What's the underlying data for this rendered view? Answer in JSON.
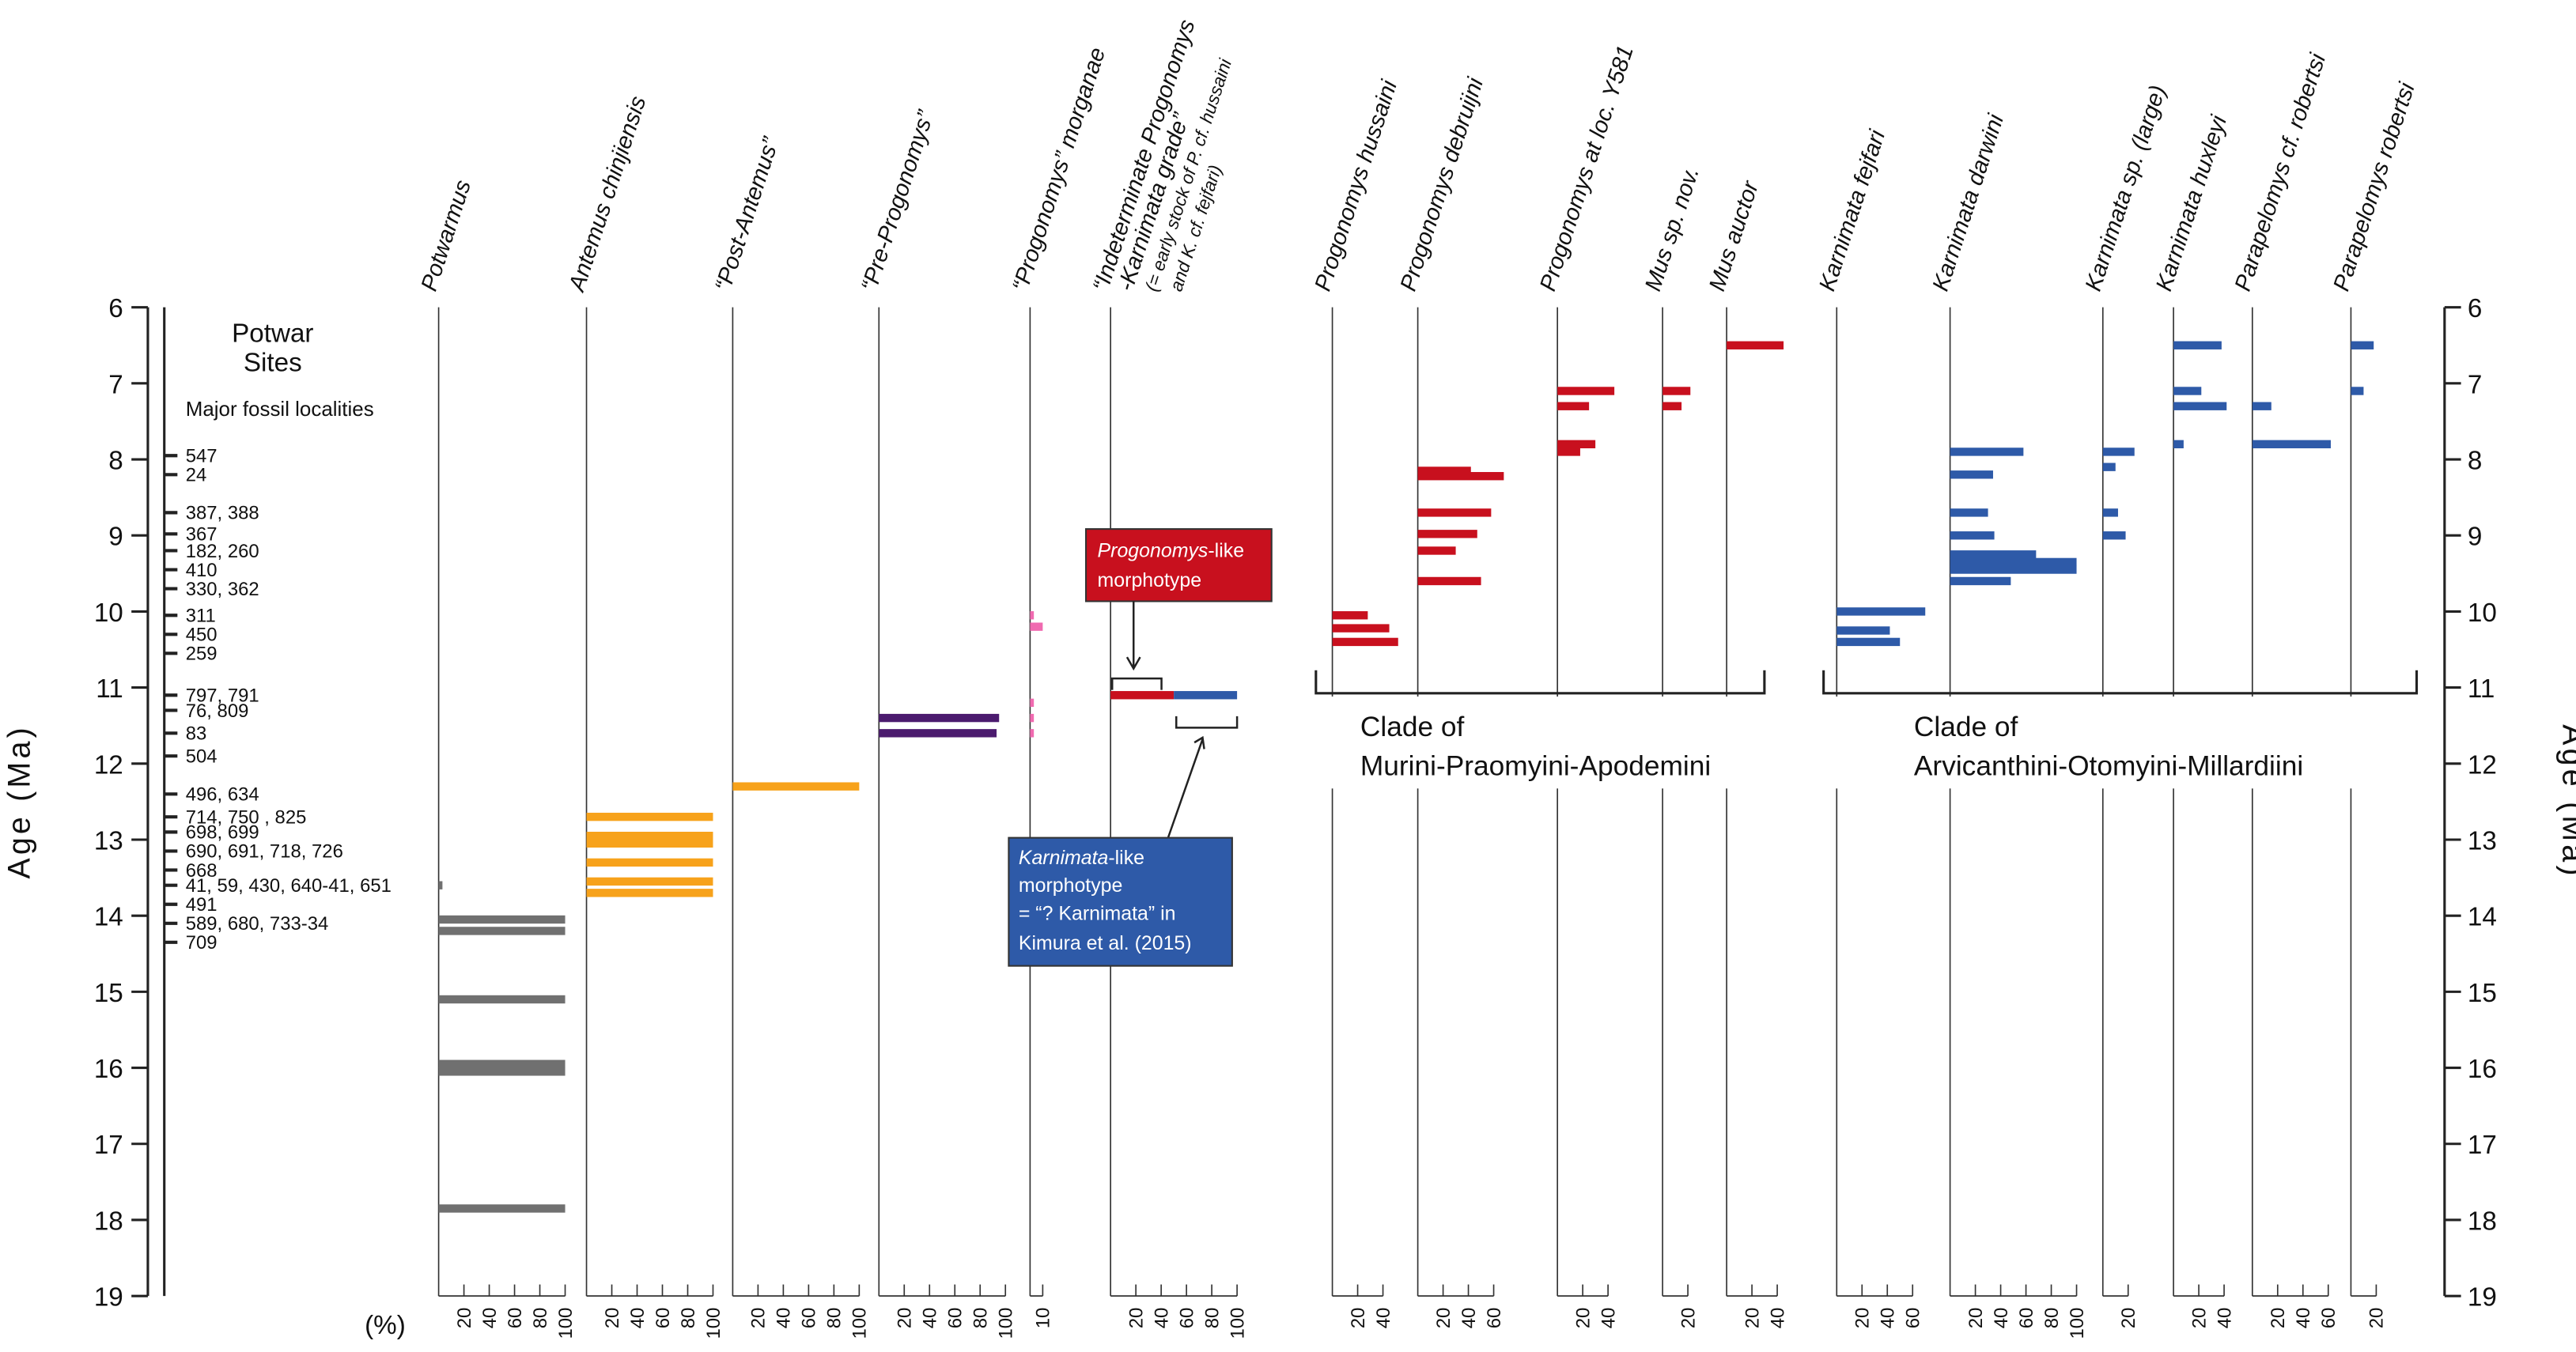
{
  "chart_data": {
    "type": "range-abundance",
    "y_title": "Age (Ma)",
    "x_unit": "(%)",
    "ylim": [
      6,
      19
    ],
    "yticks": [
      6,
      7,
      8,
      9,
      10,
      11,
      12,
      13,
      14,
      15,
      16,
      17,
      18,
      19
    ],
    "sites_title": [
      "Potwar",
      "Sites"
    ],
    "sites_subtitle": "Major fossil localities",
    "sites": [
      {
        "label": "547",
        "age": 7.95
      },
      {
        "label": "24",
        "age": 8.2
      },
      {
        "label": "387, 388",
        "age": 8.7
      },
      {
        "label": "367",
        "age": 8.98
      },
      {
        "label": "182, 260",
        "age": 9.2
      },
      {
        "label": "410",
        "age": 9.45
      },
      {
        "label": "330, 362",
        "age": 9.7
      },
      {
        "label": "311",
        "age": 10.05
      },
      {
        "label": "450",
        "age": 10.3
      },
      {
        "label": "259",
        "age": 10.55
      },
      {
        "label": "797, 791",
        "age": 11.1
      },
      {
        "label": "76, 809",
        "age": 11.3
      },
      {
        "label": "83",
        "age": 11.6
      },
      {
        "label": "504",
        "age": 11.9
      },
      {
        "label": "496, 634",
        "age": 12.4
      },
      {
        "label": "714, 750 , 825",
        "age": 12.7
      },
      {
        "label": "698, 699",
        "age": 12.9
      },
      {
        "label": "690, 691, 718, 726",
        "age": 13.15
      },
      {
        "label": "668",
        "age": 13.4
      },
      {
        "label": "41, 59, 430, 640-41, 651",
        "age": 13.6
      },
      {
        "label": "491",
        "age": 13.85
      },
      {
        "label": "589, 680, 733-34",
        "age": 14.1
      },
      {
        "label": "709",
        "age": 14.35
      }
    ],
    "columns": [
      {
        "name": [
          "Potwarmus"
        ],
        "color": "#707070",
        "xticks": [
          20,
          40,
          60,
          80,
          100
        ],
        "bars": [
          {
            "age": 13.6,
            "value": 3
          },
          {
            "age": 14.05,
            "value": 100
          },
          {
            "age": 14.2,
            "value": 100
          },
          {
            "age": 15.1,
            "value": 100
          },
          {
            "age": 15.95,
            "value": 100
          },
          {
            "age": 16.05,
            "value": 100
          },
          {
            "age": 17.85,
            "value": 100
          }
        ]
      },
      {
        "name": [
          "Antemus chinjiensis"
        ],
        "color": "#f7a21b",
        "xticks": [
          20,
          40,
          60,
          80,
          100
        ],
        "bars": [
          {
            "age": 12.7,
            "value": 100
          },
          {
            "age": 12.95,
            "value": 100
          },
          {
            "age": 13.05,
            "value": 100
          },
          {
            "age": 13.3,
            "value": 100
          },
          {
            "age": 13.55,
            "value": 100
          },
          {
            "age": 13.7,
            "value": 100
          }
        ]
      },
      {
        "name": [
          "“Post-Antemus”"
        ],
        "color": "#f7a21b",
        "xticks": [
          20,
          40,
          60,
          80,
          100
        ],
        "bars": [
          {
            "age": 12.3,
            "value": 100
          }
        ]
      },
      {
        "name": [
          "“Pre-Progonomys”"
        ],
        "color": "#4b1b6e",
        "xticks": [
          20,
          40,
          60,
          80,
          100
        ],
        "bars": [
          {
            "age": 11.4,
            "value": 95
          },
          {
            "age": 11.6,
            "value": 93
          }
        ]
      },
      {
        "name": [
          "“Progonomys” morganae"
        ],
        "color": "#f06ab0",
        "xticks": [
          10
        ],
        "bars": [
          {
            "age": 10.05,
            "value": 3
          },
          {
            "age": 10.2,
            "value": 10
          },
          {
            "age": 11.2,
            "value": 3
          },
          {
            "age": 11.4,
            "value": 3
          },
          {
            "age": 11.6,
            "value": 3
          }
        ]
      },
      {
        "name": [
          "“Indeterminate Progonomys",
          "-Karnimata grade”",
          "(= early stock of P. cf. hussaini",
          "and K. cf. fejfari)"
        ],
        "color": "#c8101e",
        "xticks": [
          20,
          40,
          60,
          80,
          100
        ],
        "bars": [
          {
            "age": 11.1,
            "value": 50
          },
          {
            "age": 11.1,
            "value": 50,
            "color": "#2e5aa8"
          }
        ]
      },
      {
        "name": [
          "Progonomys hussaini"
        ],
        "color": "#c8101e",
        "xticks": [
          20,
          40
        ],
        "bars": [
          {
            "age": 10.05,
            "value": 28
          },
          {
            "age": 10.22,
            "value": 45
          },
          {
            "age": 10.4,
            "value": 52
          }
        ]
      },
      {
        "name": [
          "Progonomys debruijni"
        ],
        "color": "#c8101e",
        "xticks": [
          20,
          40,
          60
        ],
        "bars": [
          {
            "age": 8.15,
            "value": 42
          },
          {
            "age": 8.22,
            "value": 68
          },
          {
            "age": 8.7,
            "value": 58
          },
          {
            "age": 8.98,
            "value": 47
          },
          {
            "age": 9.2,
            "value": 30
          },
          {
            "age": 9.6,
            "value": 50
          }
        ]
      },
      {
        "name": [
          "Progonomys at loc. Y581"
        ],
        "color": "#c8101e",
        "xticks": [
          20,
          40
        ],
        "bars": [
          {
            "age": 7.1,
            "value": 45
          },
          {
            "age": 7.3,
            "value": 25
          },
          {
            "age": 7.8,
            "value": 30
          },
          {
            "age": 7.9,
            "value": 18
          }
        ]
      },
      {
        "name": [
          "Mus sp. nov."
        ],
        "color": "#c8101e",
        "xticks": [
          20
        ],
        "bars": [
          {
            "age": 7.1,
            "value": 22
          },
          {
            "age": 7.3,
            "value": 15
          }
        ]
      },
      {
        "name": [
          "Mus auctor"
        ],
        "color": "#c8101e",
        "xticks": [
          20,
          40
        ],
        "bars": [
          {
            "age": 6.5,
            "value": 45
          }
        ]
      },
      {
        "name": [
          "Karnimata fejfari"
        ],
        "color": "#2e5aa8",
        "xticks": [
          20,
          40,
          60
        ],
        "bars": [
          {
            "age": 10.0,
            "value": 70
          },
          {
            "age": 10.25,
            "value": 42
          },
          {
            "age": 10.4,
            "value": 50
          }
        ]
      },
      {
        "name": [
          "Karnimata darwini"
        ],
        "color": "#2e5aa8",
        "xticks": [
          20,
          40,
          60,
          80,
          100
        ],
        "bars": [
          {
            "age": 7.9,
            "value": 58
          },
          {
            "age": 8.2,
            "value": 34
          },
          {
            "age": 8.7,
            "value": 30
          },
          {
            "age": 9.0,
            "value": 35
          },
          {
            "age": 9.25,
            "value": 68
          },
          {
            "age": 9.35,
            "value": 100
          },
          {
            "age": 9.45,
            "value": 100
          },
          {
            "age": 9.6,
            "value": 48
          }
        ]
      },
      {
        "name": [
          "Karnimata sp. (large)"
        ],
        "color": "#2e5aa8",
        "xticks": [
          20
        ],
        "bars": [
          {
            "age": 7.9,
            "value": 25
          },
          {
            "age": 8.1,
            "value": 10
          },
          {
            "age": 8.7,
            "value": 12
          },
          {
            "age": 9.0,
            "value": 18
          }
        ]
      },
      {
        "name": [
          "Karnimata huxleyi"
        ],
        "color": "#2e5aa8",
        "xticks": [
          20,
          40
        ],
        "bars": [
          {
            "age": 6.5,
            "value": 38
          },
          {
            "age": 7.1,
            "value": 22
          },
          {
            "age": 7.3,
            "value": 42
          },
          {
            "age": 7.8,
            "value": 8
          }
        ]
      },
      {
        "name": [
          "Parapelomys cf. robertsi"
        ],
        "color": "#2e5aa8",
        "xticks": [
          20,
          40,
          60
        ],
        "bars": [
          {
            "age": 7.3,
            "value": 15
          },
          {
            "age": 7.8,
            "value": 62
          }
        ]
      },
      {
        "name": [
          "Parapelomys robertsi"
        ],
        "color": "#2e5aa8",
        "xticks": [
          20
        ],
        "bars": [
          {
            "age": 6.5,
            "value": 18
          },
          {
            "age": 7.1,
            "value": 10
          }
        ]
      }
    ],
    "clades": [
      [
        "Clade of",
        "Murini-Praomyini-Apodemini"
      ],
      [
        "Clade of",
        "Arvicanthini-Otomyini-Millardiini"
      ]
    ],
    "prog_box": [
      "Progonomys",
      "-like",
      "morphotype"
    ],
    "karn_box": [
      "Karnimata",
      "-like",
      "morphotype",
      "= “? Karnimata” in",
      "Kimura et al. (2015)"
    ]
  }
}
